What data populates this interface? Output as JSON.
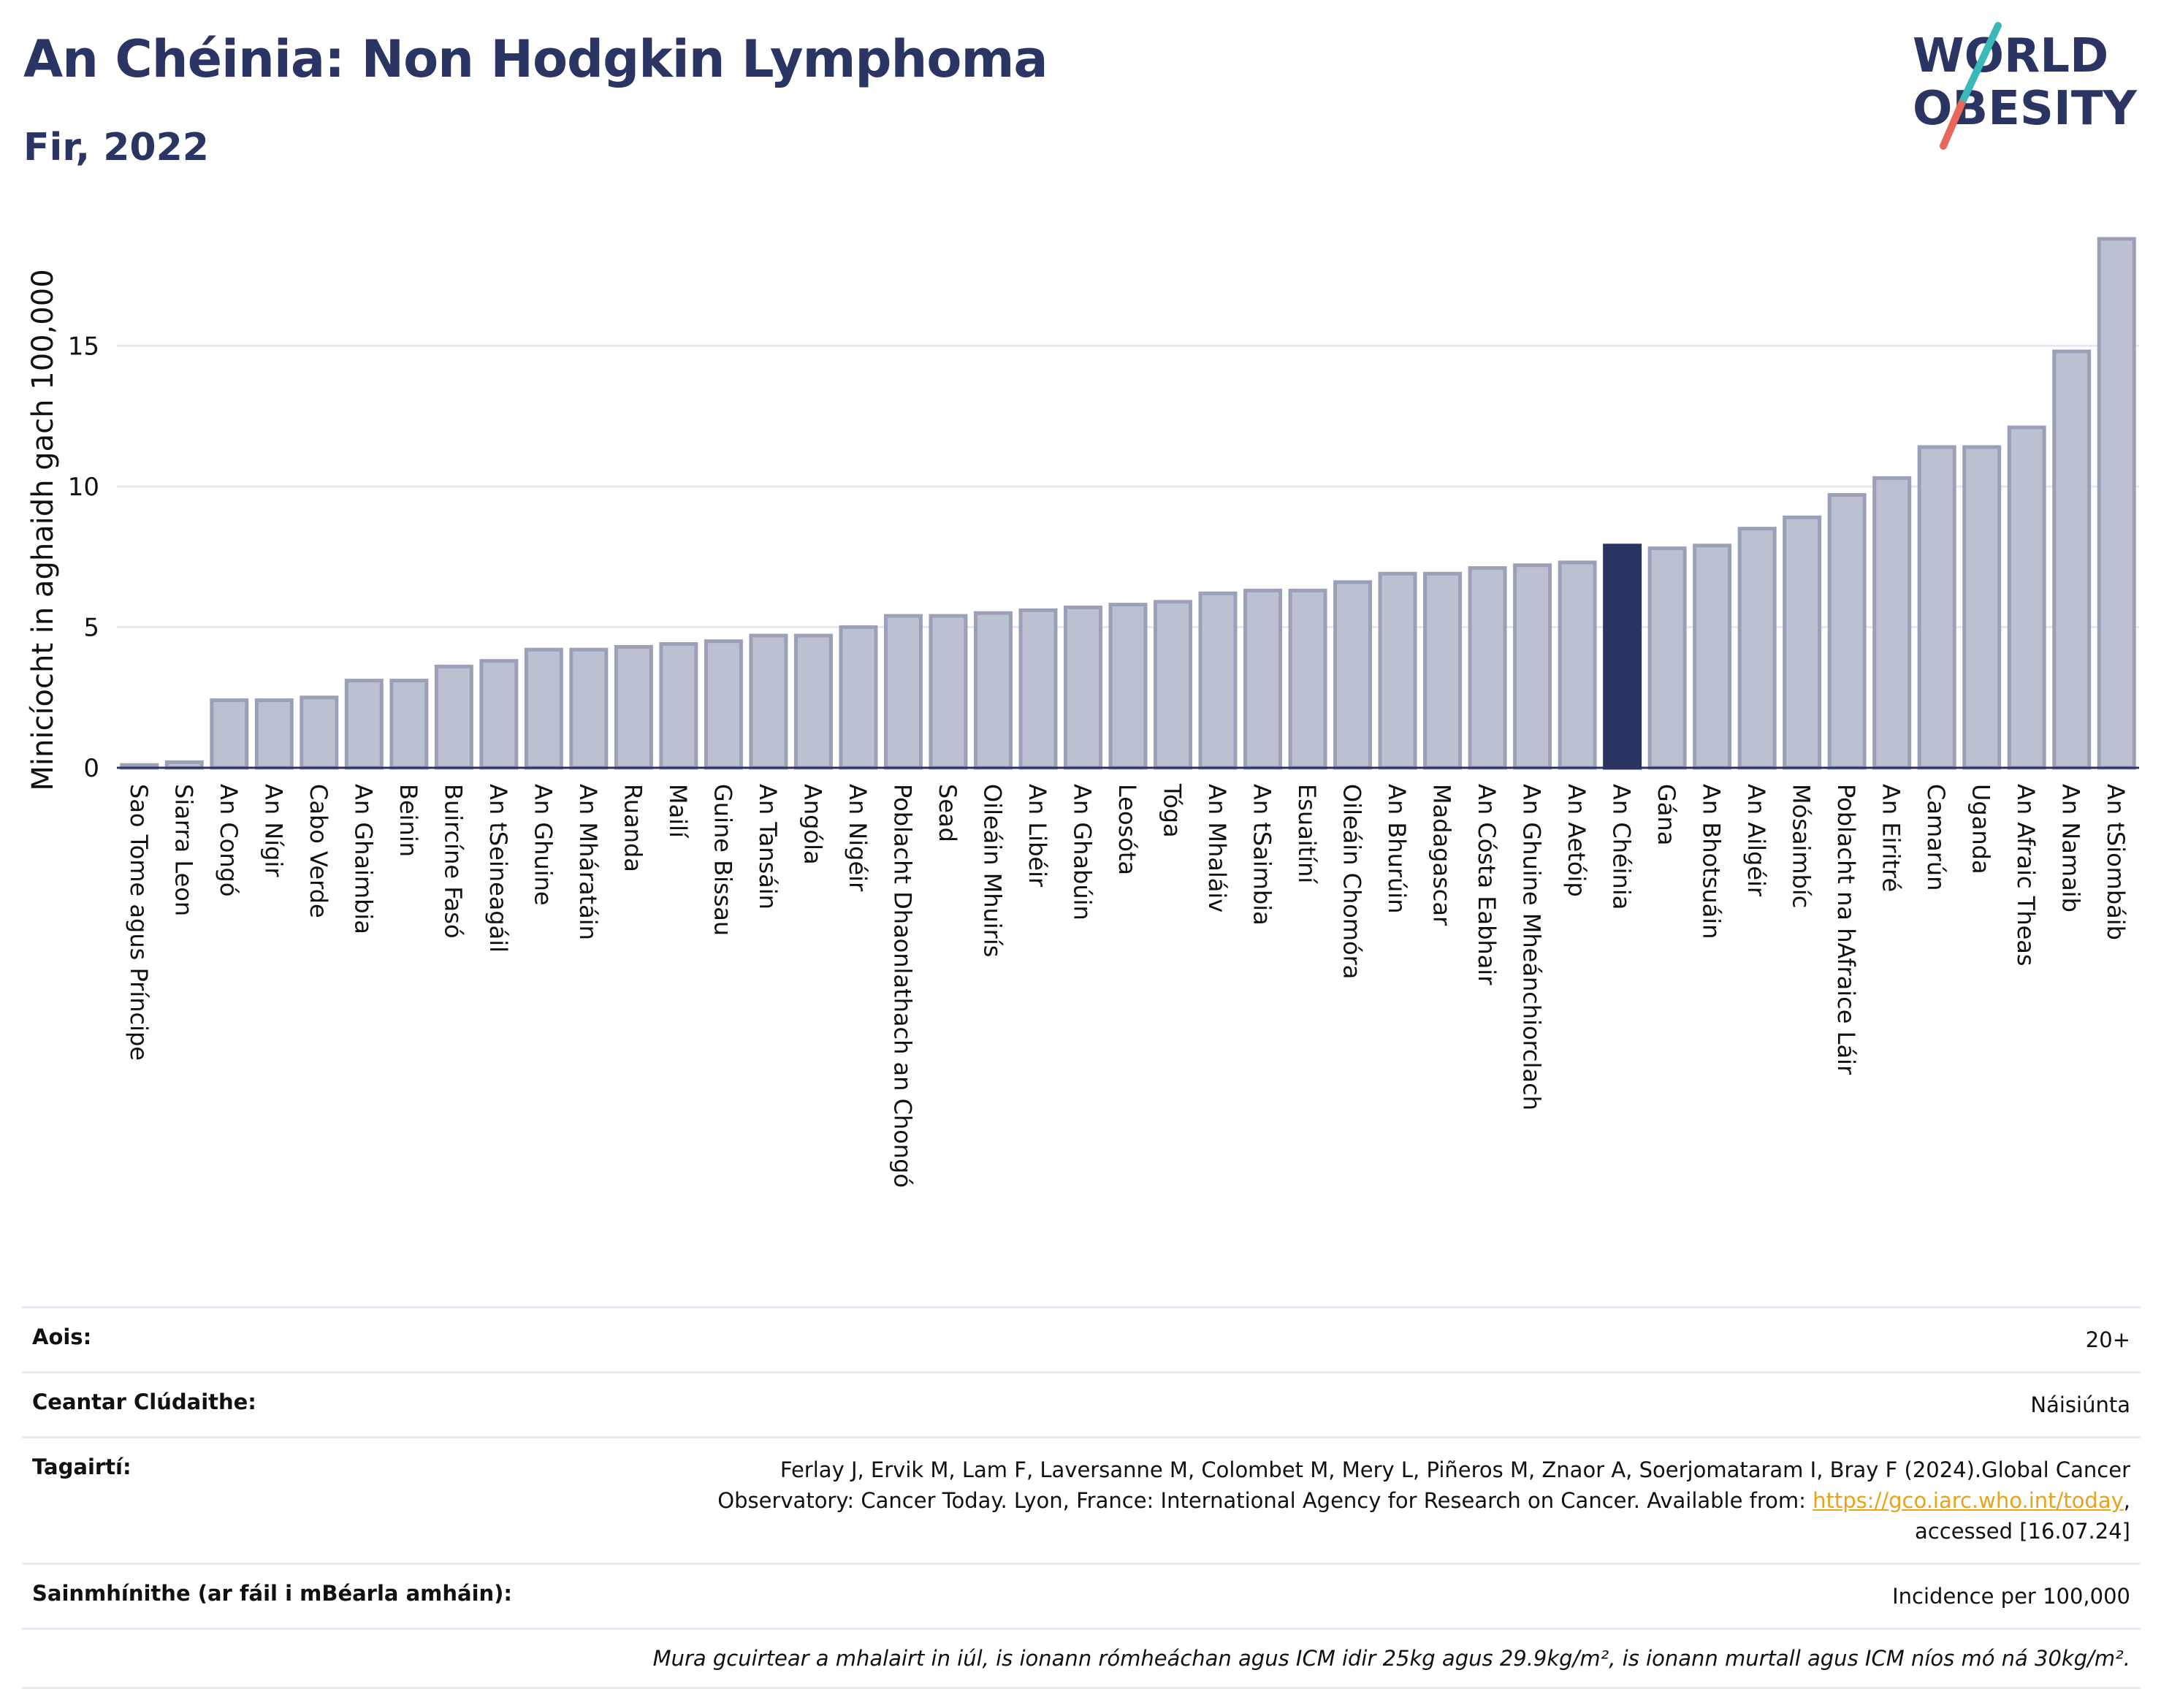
{
  "header": {
    "title": "An Chéinia: Non Hodgkin Lymphoma",
    "subtitle": "Fir, 2022",
    "logo_line1": "WORLD",
    "logo_line2": "OBESITY"
  },
  "colors": {
    "brand": "#2b3563",
    "bar": "#bcc1d1",
    "bar_edge": "#9aa0b8",
    "highlight": "#2b3563",
    "logo_teal": "#3bb8b8",
    "logo_red": "#e8685a",
    "link": "#e9a21b"
  },
  "chart_data": {
    "type": "bar",
    "ylabel": "Minicíocht in aghaidh gach 100,000",
    "ylim": [
      0,
      19.5
    ],
    "yticks": [
      0,
      5,
      10,
      15
    ],
    "grid": true,
    "highlight_category": "An Chéinia",
    "categories": [
      "Sao Tome agus Príncipe",
      "Siarra Leon",
      "An Congó",
      "An Nígir",
      "Cabo Verde",
      "An Ghaimbia",
      "Beinin",
      "Buircíne Fasó",
      "An tSeineagáil",
      "An Ghuine",
      "An Mháratáin",
      "Ruanda",
      "Mailí",
      "Guine Bissau",
      "An Tansáin",
      "Angóla",
      "An Nigéir",
      "Poblacht Dhaonlathach an Chongó",
      "Sead",
      "Oileáin Mhuirís",
      "An Libéir",
      "An Ghabúin",
      "Leosóta",
      "Tóga",
      "An Mhaláiv",
      "An tSaimbia",
      "Esuaitíní",
      "Oileáin Chomóra",
      "An Bhurúin",
      "Madagascar",
      "An Cósta Eabhair",
      "An Ghuine Mheánchiorclach",
      "An Aetóip",
      "An Chéinia",
      "Gána",
      "An Bhotsuáin",
      "An Ailgéir",
      "Mósaimbíc",
      "Poblacht na hAfraice Láir",
      "An Eiritré",
      "Camarún",
      "Uganda",
      "An Afraic Theas",
      "An Namaib",
      "An tSiombáib"
    ],
    "values": [
      0.1,
      0.2,
      2.4,
      2.4,
      2.5,
      3.1,
      3.1,
      3.6,
      3.8,
      4.2,
      4.2,
      4.3,
      4.4,
      4.5,
      4.7,
      4.7,
      5.0,
      5.4,
      5.4,
      5.5,
      5.6,
      5.7,
      5.8,
      5.9,
      6.2,
      6.3,
      6.3,
      6.6,
      6.9,
      6.9,
      7.1,
      7.2,
      7.3,
      7.9,
      7.8,
      7.9,
      8.5,
      8.9,
      9.7,
      10.3,
      11.4,
      11.4,
      12.1,
      14.8,
      18.8
    ]
  },
  "meta": {
    "age_label": "Aois:",
    "age_value": "20+",
    "area_label": "Ceantar Clúdaithe:",
    "area_value": "Náisiúnta",
    "refs_label": "Tagairtí:",
    "refs_line1": "Ferlay J, Ervik M, Lam F, Laversanne M, Colombet M, Mery L, Piñeros M, Znaor A, Soerjomataram I, Bray F (2024).Global Cancer",
    "refs_line2": "Observatory: Cancer Today. Lyon, France: International Agency for Research on Cancer. Available from: ",
    "refs_link": "https://gco.iarc.who.int/today",
    "refs_line2_end": ",",
    "refs_line3": "accessed [16.07.24]",
    "defs_label": "Sainmhínithe (ar fáil i mBéarla amháin):",
    "defs_value": "Incidence per 100,000",
    "note": "Mura gcuirtear a mhalairt in iúl, is ionann rómheáchan agus ICM idir 25kg agus 29.9kg/m², is ionann murtall agus ICM níos mó ná 30kg/m²."
  }
}
